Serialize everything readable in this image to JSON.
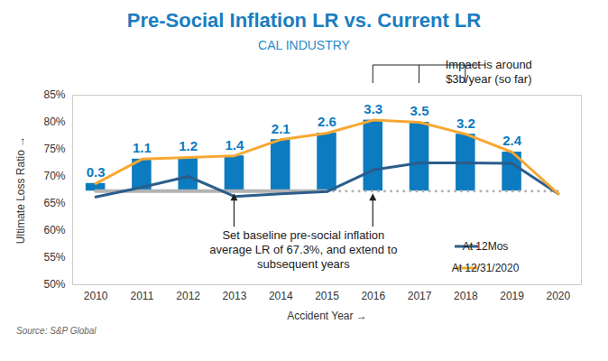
{
  "chart_data": {
    "type": "bar_line",
    "title": "Pre-Social Inflation LR vs. Current LR",
    "subtitle": "CAL INDUSTRY",
    "x_label": "Accident Year",
    "y_label": "Ultimate Loss Ratio",
    "x": [
      2010,
      2011,
      2012,
      2013,
      2014,
      2015,
      2016,
      2017,
      2018,
      2019,
      2020
    ],
    "xlim": [
      2009.5,
      2020.5
    ],
    "xticks": [
      2010,
      2011,
      2012,
      2013,
      2014,
      2015,
      2016,
      2017,
      2018,
      2019,
      2020
    ],
    "ylim": [
      50,
      85
    ],
    "yticks": [
      {
        "value": 50,
        "label": "50%"
      },
      {
        "value": 55,
        "label": "55%"
      },
      {
        "value": 60,
        "label": "60%"
      },
      {
        "value": 65,
        "label": "65%"
      },
      {
        "value": 70,
        "label": "70%"
      },
      {
        "value": 75,
        "label": "75%"
      },
      {
        "value": 80,
        "label": "80%"
      },
      {
        "value": 85,
        "label": "85%"
      }
    ],
    "grid": false,
    "legend": "lower-right",
    "series": [
      {
        "type": "bar",
        "color": "#0c7bbf",
        "values": [
          68.7,
          73.2,
          73.5,
          73.8,
          76.8,
          78.0,
          80.4,
          80.0,
          77.8,
          74.5,
          null
        ],
        "labels": [
          0.3,
          1.1,
          1.2,
          1.4,
          2.1,
          2.6,
          3.3,
          3.5,
          3.2,
          2.4,
          null
        ]
      },
      {
        "name": "At 12Mos",
        "type": "line",
        "color": "#2b5d8c",
        "values": [
          66.2,
          68.0,
          70.0,
          66.3,
          66.8,
          67.2,
          71.2,
          72.5,
          72.5,
          72.4,
          66.8
        ]
      },
      {
        "name": "At 12/31/2020",
        "type": "line",
        "color": "#f7a833",
        "values": [
          68.7,
          73.2,
          73.5,
          73.8,
          76.8,
          78.0,
          80.4,
          80.0,
          77.8,
          74.5,
          66.8
        ]
      }
    ],
    "baseline": {
      "value": 67.3,
      "color": "#b3b3b3",
      "solid": [
        2010,
        2015
      ],
      "dotted": [
        2015,
        2020
      ]
    },
    "annotations": [
      {
        "text": [
          "Impact is around",
          "$3b/year (so far)"
        ],
        "x": [
          2016,
          2018
        ]
      },
      {
        "text": [
          "Set baseline pre-social inflation",
          "average LR of 67.3%, and extend to",
          "subsequent years"
        ],
        "x": [
          2013,
          2016
        ]
      }
    ],
    "source": "Source: S&P Global"
  }
}
